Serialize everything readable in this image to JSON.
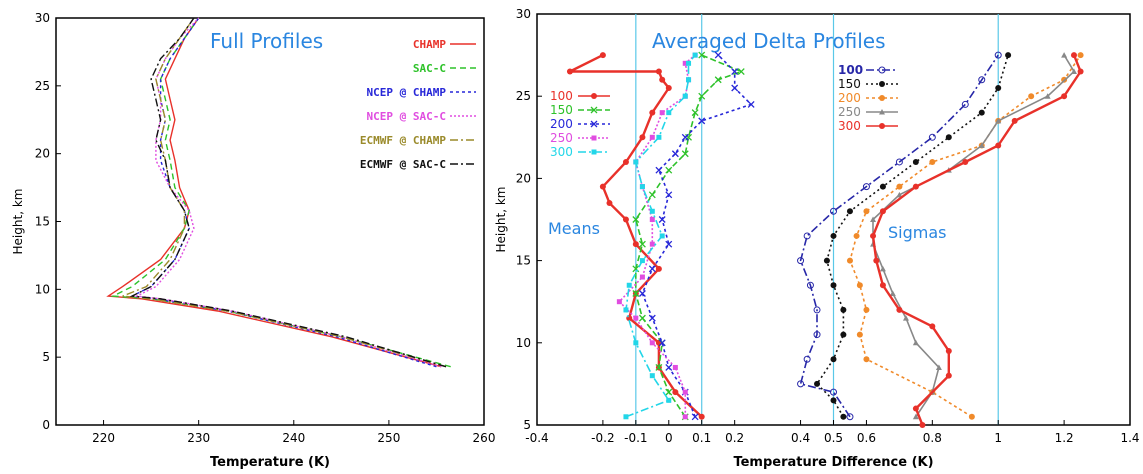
{
  "chart_data": [
    {
      "type": "line",
      "title": "Full Profiles",
      "xlabel": "Temperature (K)",
      "ylabel": "Height, km",
      "xlim": [
        215,
        260
      ],
      "ylim": [
        0,
        30
      ],
      "xticks": [
        "220",
        "230",
        "240",
        "250",
        "260"
      ],
      "yticks": [
        "0",
        "5",
        "10",
        "15",
        "20",
        "25",
        "30"
      ],
      "legend": "top-right",
      "series": [
        {
          "name": "CHAMP",
          "color": "#e8312a",
          "dash": "solid",
          "x": [
            255.5,
            244,
            232,
            224,
            220.5,
            222,
            226,
            228.5,
            229,
            228,
            227.5,
            227,
            227.5,
            227,
            226.5,
            227.5,
            228.5,
            230
          ],
          "y": [
            4.3,
            6.5,
            8.4,
            9.3,
            9.5,
            10.2,
            12.2,
            14.5,
            15.8,
            17.5,
            19.5,
            21,
            22.5,
            24,
            25.5,
            27,
            28.5,
            30
          ]
        },
        {
          "name": "SAC-C",
          "color": "#2ec22a",
          "dash": "6,4",
          "x": [
            256.5,
            245,
            233,
            225,
            221,
            223,
            226.5,
            228.5,
            229,
            227.5,
            227,
            226.5,
            227,
            226.5,
            226,
            227,
            228.5,
            230
          ],
          "y": [
            4.3,
            6.5,
            8.4,
            9.3,
            9.5,
            10.2,
            12.2,
            14.5,
            15.8,
            17.5,
            19.5,
            21,
            22.5,
            24,
            25.5,
            27,
            28.5,
            30
          ]
        },
        {
          "name": "NCEP @ CHAMP",
          "color": "#2727d8",
          "dash": "3,3",
          "x": [
            255,
            244.5,
            233,
            225.5,
            223,
            225,
            227.5,
            229,
            228.5,
            227,
            226,
            226,
            226.5,
            226,
            226,
            227,
            228.5,
            230
          ],
          "y": [
            4.3,
            6.5,
            8.4,
            9.3,
            9.5,
            10.2,
            12.2,
            14.5,
            15.8,
            17.5,
            19.5,
            21,
            22.5,
            24,
            25.5,
            27,
            28.5,
            30
          ]
        },
        {
          "name": "NCEP @ SAC-C",
          "color": "#e04de0",
          "dash": "2,2",
          "x": [
            255.5,
            245,
            233.5,
            226,
            223.5,
            225.5,
            228,
            229.5,
            229,
            227,
            225.5,
            225.5,
            226,
            226,
            225.5,
            226.5,
            228,
            230
          ],
          "y": [
            4.3,
            6.5,
            8.4,
            9.3,
            9.5,
            10.2,
            12.2,
            14.5,
            15.8,
            17.5,
            19.5,
            21,
            22.5,
            24,
            25.5,
            27,
            28.5,
            30
          ]
        },
        {
          "name": "ECMWF @ CHAMP",
          "color": "#9a8a2a",
          "dash": "8,3,2,3",
          "x": [
            256,
            245,
            233,
            225,
            222,
            224.5,
            227,
            228.5,
            228.5,
            227,
            226.5,
            226,
            226.5,
            226,
            225.5,
            226.5,
            228,
            229.5
          ],
          "y": [
            4.3,
            6.5,
            8.4,
            9.3,
            9.5,
            10.2,
            12.2,
            14.5,
            15.8,
            17.5,
            19.5,
            21,
            22.5,
            24,
            25.5,
            27,
            28.5,
            30
          ]
        },
        {
          "name": "ECMWF @ SAC-C",
          "color": "#111111",
          "dash": "8,3,2,3",
          "x": [
            256,
            245.5,
            233.5,
            226,
            223,
            225,
            227.5,
            229,
            228.5,
            227,
            226.5,
            225.5,
            226,
            225.5,
            225,
            226,
            228,
            229.5
          ],
          "y": [
            4.3,
            6.5,
            8.4,
            9.3,
            9.5,
            10.2,
            12.2,
            14.5,
            15.8,
            17.5,
            19.5,
            21,
            22.5,
            24,
            25.5,
            27,
            28.5,
            30
          ]
        }
      ]
    },
    {
      "type": "line",
      "title": "Averaged Delta Profiles",
      "xlabel": "Temperature Difference (K)",
      "ylabel": "Height, km",
      "xlim": [
        -0.4,
        1.4
      ],
      "ylim": [
        5,
        30
      ],
      "xticks": [
        "-0.4",
        "-0.2",
        "-0.1",
        "0",
        "0.1",
        "0.2",
        "0.4",
        "0.5",
        "0.6",
        "0.8",
        "1",
        "1.2",
        "1.4"
      ],
      "yticks": [
        "5",
        "10",
        "15",
        "20",
        "25",
        "30"
      ],
      "vlines": [
        -0.1,
        0.1,
        0.5,
        1.0
      ],
      "vline_color": "#5ac8e8",
      "annotations": [
        "Means",
        "Sigmas"
      ],
      "legend_means": "left",
      "legend_sigmas": "top-center",
      "means": [
        {
          "name": "100",
          "color": "#e8312a",
          "dash": "solid",
          "marker": "dot",
          "x": [
            0.1,
            0.02,
            -0.03,
            -0.03,
            -0.12,
            -0.1,
            -0.03,
            -0.1,
            -0.13,
            -0.18,
            -0.2,
            -0.13,
            -0.08,
            -0.05,
            0.0,
            -0.02,
            -0.03,
            -0.3,
            -0.2
          ],
          "y": [
            5.5,
            7,
            8.5,
            10,
            11.5,
            13,
            14.5,
            16,
            17.5,
            18.5,
            19.5,
            21,
            22.5,
            24,
            25.5,
            26,
            26.5,
            26.5,
            27.5
          ]
        },
        {
          "name": "150",
          "color": "#2ec22a",
          "dash": "6,3",
          "marker": "x",
          "x": [
            0.05,
            0.0,
            -0.03,
            -0.02,
            -0.08,
            -0.1,
            -0.1,
            -0.08,
            -0.1,
            -0.05,
            0.0,
            0.05,
            0.06,
            0.08,
            0.1,
            0.15,
            0.22,
            0.1
          ],
          "y": [
            5.5,
            7,
            8.5,
            10,
            11.5,
            13,
            14.5,
            16,
            17.5,
            19,
            20.5,
            21.5,
            22.5,
            24,
            25,
            26,
            26.5,
            27.5
          ]
        },
        {
          "name": "200",
          "color": "#2727d8",
          "dash": "3,3",
          "marker": "x",
          "x": [
            0.08,
            0.05,
            0.0,
            -0.02,
            -0.05,
            -0.08,
            -0.05,
            0.0,
            -0.02,
            0.0,
            -0.03,
            0.02,
            0.05,
            0.1,
            0.25,
            0.2,
            0.2,
            0.15
          ],
          "y": [
            5.5,
            7,
            8.5,
            10,
            11.5,
            13,
            14.5,
            16,
            17.5,
            19,
            20.5,
            21.5,
            22.5,
            23.5,
            24.5,
            25.5,
            26.5,
            27.5
          ]
        },
        {
          "name": "250",
          "color": "#e04de0",
          "dash": "2,2",
          "marker": "square",
          "x": [
            0.05,
            0.05,
            0.02,
            -0.05,
            -0.1,
            -0.15,
            -0.08,
            -0.05,
            -0.05,
            -0.08,
            -0.1,
            -0.05,
            -0.02,
            0.05,
            0.06,
            0.05,
            0.08
          ],
          "y": [
            5.5,
            7,
            8.5,
            10,
            11.5,
            12.5,
            14,
            16,
            17.5,
            19.5,
            21,
            22.5,
            24,
            25,
            26,
            27,
            27.5
          ]
        },
        {
          "name": "300",
          "color": "#22d6e8",
          "dash": "8,3,2,3",
          "marker": "square",
          "x": [
            -0.13,
            0.0,
            -0.05,
            -0.1,
            -0.13,
            -0.12,
            -0.08,
            -0.02,
            -0.05,
            -0.08,
            -0.1,
            -0.03,
            0.0,
            0.05,
            0.06,
            0.06,
            0.08
          ],
          "y": [
            5.5,
            6.5,
            8,
            10,
            12,
            13.5,
            15,
            16.5,
            18,
            19.5,
            21,
            22.5,
            24,
            25,
            26,
            27,
            27.5
          ]
        }
      ],
      "sigmas": [
        {
          "name": "100",
          "color": "#2727a8",
          "dash": "8,3,2,3",
          "marker": "circle",
          "x": [
            0.55,
            0.5,
            0.4,
            0.42,
            0.45,
            0.45,
            0.43,
            0.4,
            0.42,
            0.5,
            0.6,
            0.7,
            0.8,
            0.9,
            0.95,
            1.0
          ],
          "y": [
            5.5,
            7,
            7.5,
            9,
            10.5,
            12,
            13.5,
            15,
            16.5,
            18,
            19.5,
            21,
            22.5,
            24.5,
            26,
            27.5
          ]
        },
        {
          "name": "150",
          "color": "#111111",
          "dash": "2,3",
          "marker": "dot",
          "x": [
            0.53,
            0.5,
            0.45,
            0.5,
            0.53,
            0.53,
            0.5,
            0.48,
            0.5,
            0.55,
            0.65,
            0.75,
            0.85,
            0.95,
            1.0,
            1.03
          ],
          "y": [
            5.5,
            6.5,
            7.5,
            9,
            10.5,
            12,
            13.5,
            15,
            16.5,
            18,
            19.5,
            21,
            22.5,
            24,
            25.5,
            27.5
          ]
        },
        {
          "name": "200",
          "color": "#f08a2a",
          "dash": "3,3",
          "marker": "dot",
          "x": [
            0.92,
            0.8,
            0.6,
            0.58,
            0.6,
            0.58,
            0.55,
            0.57,
            0.6,
            0.7,
            0.8,
            0.95,
            1.0,
            1.1,
            1.2,
            1.25
          ],
          "y": [
            5.5,
            7,
            9,
            10.5,
            12,
            13.5,
            15,
            16.5,
            18,
            19.5,
            21,
            22,
            23.5,
            25,
            26,
            27.5
          ]
        },
        {
          "name": "250",
          "color": "#888888",
          "dash": "solid",
          "marker": "tri",
          "x": [
            0.75,
            0.8,
            0.82,
            0.75,
            0.72,
            0.68,
            0.65,
            0.62,
            0.62,
            0.7,
            0.85,
            0.95,
            1.0,
            1.15,
            1.23,
            1.2
          ],
          "y": [
            5.5,
            7,
            8.5,
            10,
            11.5,
            13,
            14.5,
            16,
            17.5,
            19,
            20.5,
            22,
            23.5,
            25,
            26.5,
            27.5
          ]
        },
        {
          "name": "300",
          "color": "#e8312a",
          "dash": "solid",
          "marker": "dot",
          "x": [
            0.77,
            0.75,
            0.85,
            0.85,
            0.8,
            0.7,
            0.65,
            0.63,
            0.62,
            0.65,
            0.75,
            0.9,
            1.0,
            1.05,
            1.2,
            1.25,
            1.23
          ],
          "y": [
            5,
            6,
            8,
            9.5,
            11,
            12,
            13.5,
            15,
            16.5,
            18,
            19.5,
            21,
            22,
            23.5,
            25,
            26.5,
            27.5
          ]
        }
      ]
    }
  ]
}
